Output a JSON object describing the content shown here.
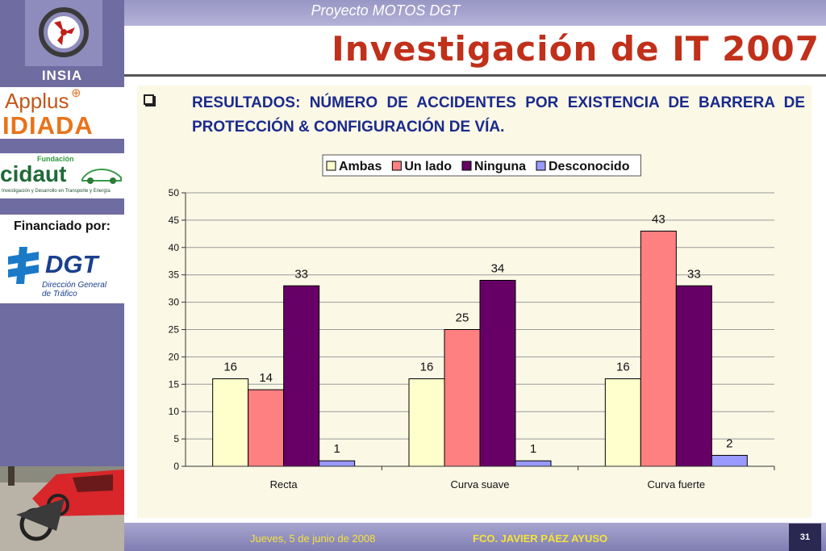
{
  "header": {
    "project": "Proyecto MOTOS DGT",
    "title": "Investigación de IT 2007"
  },
  "sidebar": {
    "insia": "INSIA",
    "applus": "Applus",
    "idiada": "IDIADA",
    "cidaut_fundacion": "Fundación",
    "cidaut": "cidaut",
    "cidaut_sub": "Investigación y Desarrollo en Transporte y Energía",
    "financiado": "Financiado por:",
    "dgt": "DGT",
    "dgt_sub_1": "Dirección General",
    "dgt_sub_2": "de Tráfico"
  },
  "content": {
    "subtitle": "RESULTADOS: NÚMERO DE ACCIDENTES POR EXISTENCIA DE BARRERA DE PROTECCIÓN & CONFIGURACIÓN DE VÍA."
  },
  "chart_data": {
    "type": "bar",
    "categories": [
      "Recta",
      "Curva suave",
      "Curva fuerte"
    ],
    "series": [
      {
        "name": "Ambas",
        "values": [
          16,
          16,
          16
        ],
        "color": "#ffffcc"
      },
      {
        "name": "Un lado",
        "values": [
          14,
          25,
          43
        ],
        "color": "#ff8080"
      },
      {
        "name": "Ninguna",
        "values": [
          33,
          34,
          33
        ],
        "color": "#660066"
      },
      {
        "name": "Desconocido",
        "values": [
          1,
          1,
          2
        ],
        "color": "#9999ff"
      }
    ],
    "ylim": [
      0,
      50
    ],
    "yticks": [
      0,
      5,
      10,
      15,
      20,
      25,
      30,
      35,
      40,
      45,
      50
    ],
    "grid": true,
    "legend": "top-center"
  },
  "footer": {
    "date": "Jueves, 5 de junio de 2008",
    "author": "FCO. JAVIER PÁEZ AYUSO",
    "page": "31"
  }
}
